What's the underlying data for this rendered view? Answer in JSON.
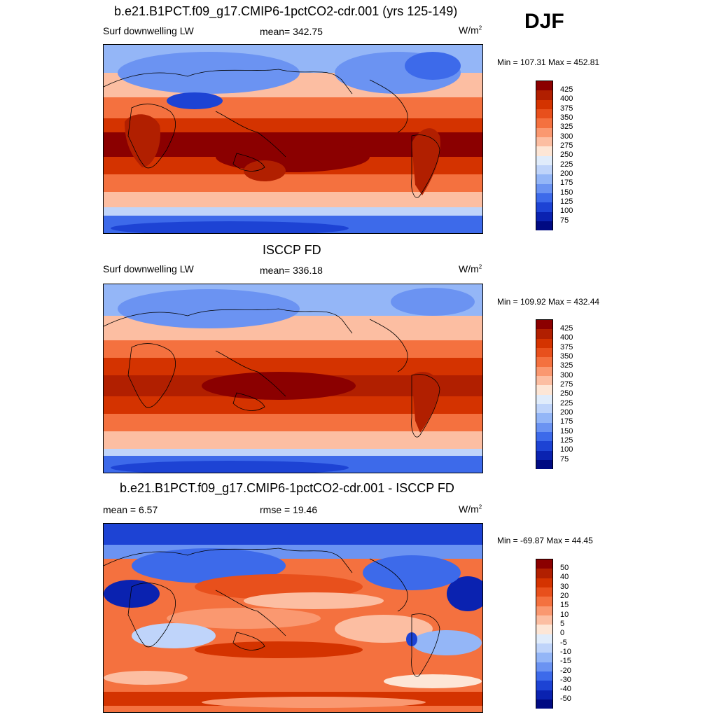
{
  "corner_label": "DJF",
  "panels": [
    {
      "title": "b.e21.B1PCT.f09_g17.CMIP6-1pctCO2-cdr.001 (yrs 125-149)",
      "left_label": "Surf downwelling LW",
      "center_label": "mean= 342.75",
      "units": "W/m",
      "units_sup": "2",
      "minmax": "Min = 107.31 Max = 452.81",
      "colorbar_labels": [
        "425",
        "400",
        "375",
        "350",
        "325",
        "300",
        "275",
        "250",
        "225",
        "200",
        "175",
        "150",
        "125",
        "100",
        "75"
      ]
    },
    {
      "title": "ISCCP FD",
      "left_label": "Surf downwelling LW",
      "center_label": "mean= 336.18",
      "units": "W/m",
      "units_sup": "2",
      "minmax": "Min = 109.92 Max = 432.44",
      "colorbar_labels": [
        "425",
        "400",
        "375",
        "350",
        "325",
        "300",
        "275",
        "250",
        "225",
        "200",
        "175",
        "150",
        "125",
        "100",
        "75"
      ]
    },
    {
      "title": "b.e21.B1PCT.f09_g17.CMIP6-1pctCO2-cdr.001 - ISCCP FD",
      "left_label": "mean =   6.57",
      "center_label": "rmse =  19.46",
      "units": "W/m",
      "units_sup": "2",
      "minmax": "Min = -69.87 Max =  44.45",
      "colorbar_labels": [
        "50",
        "40",
        "30",
        "20",
        "15",
        "10",
        "5",
        "0",
        "-5",
        "-10",
        "-15",
        "-20",
        "-30",
        "-40",
        "-50"
      ]
    }
  ],
  "colorbar_colors": [
    "#8b0000",
    "#b11f00",
    "#d43300",
    "#e8501c",
    "#f4713f",
    "#fa9870",
    "#fcbea2",
    "#fde6d6",
    "#e0ecfb",
    "#bfd4fa",
    "#94b6f7",
    "#6b93f2",
    "#3d6aea",
    "#1d43d4",
    "#0a22b0",
    "#000a82"
  ]
}
